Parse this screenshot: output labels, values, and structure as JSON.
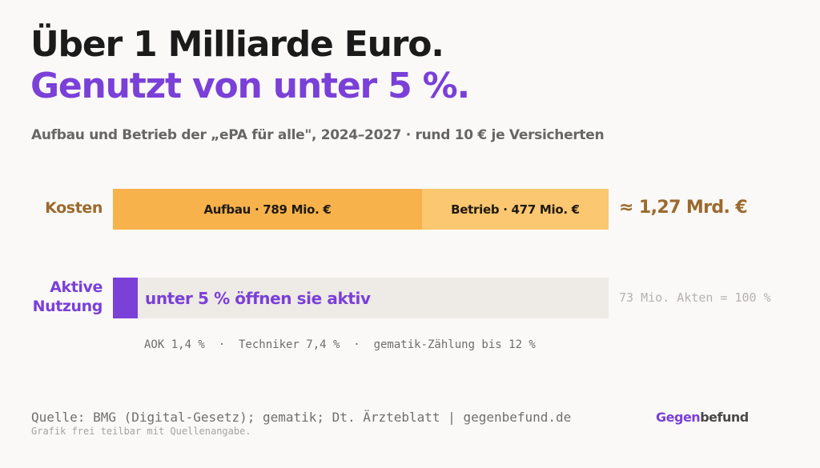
{
  "chart_data": {
    "type": "bar",
    "title": "Über 1 Milliarde Euro.",
    "title_highlight": "Genutzt von unter 5 %.",
    "subtitle": "Aufbau und Betrieb der „ePA für alle\", 2024–2027 · rund 10 € je Versicherten",
    "cost_row": {
      "label": "Kosten",
      "unit": "Mio. €",
      "segments": [
        {
          "name": "Aufbau",
          "value": 789,
          "label": "Aufbau · 789 Mio. €",
          "color": "#f7b24c"
        },
        {
          "name": "Betrieb",
          "value": 477,
          "label": "Betrieb · 477 Mio. €",
          "color": "#fbc770"
        }
      ],
      "total_label": "≈ 1,27 Mrd. €"
    },
    "usage_row": {
      "label_line1": "Aktive",
      "label_line2": "Nutzung",
      "value_percent": 5,
      "bar_label": "unter 5 % öffnen sie aktiv",
      "reference_label": "73 Mio. Akten = 100 %",
      "breakdown_label": "AOK 1,4 %  ·  Techniker 7,4 %  ·  gematik-Zählung bis 12 %",
      "fill_color": "#7a40d8",
      "track_color": "#eeeae6"
    }
  },
  "footer": {
    "source": "Quelle: BMG (Digital-Gesetz); gematik; Dt. Ärzteblatt | gegenbefund.de",
    "note": "Grafik frei teilbar mit Quellenangabe.",
    "logo_part1": "Gegen",
    "logo_part2": "befund"
  },
  "colors": {
    "accent": "#7a40d8",
    "cost_text": "#9b6a2e",
    "background": "#faf9f7"
  }
}
